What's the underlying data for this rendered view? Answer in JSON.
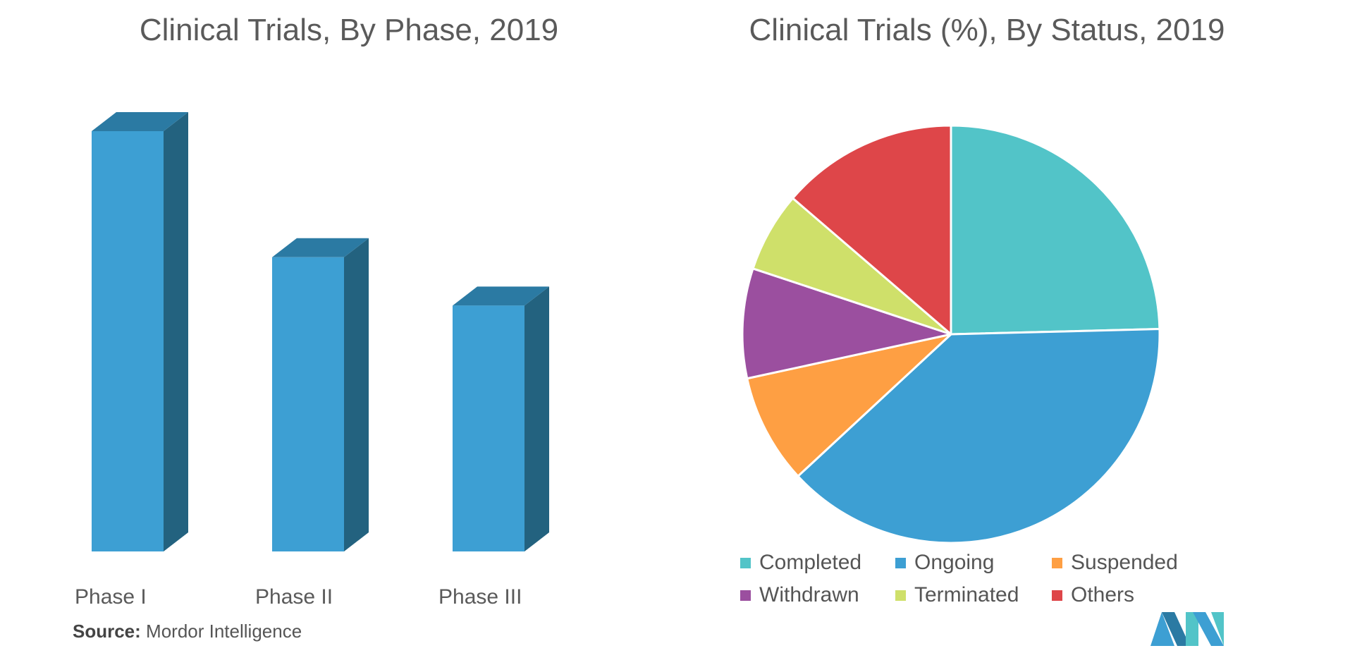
{
  "source": {
    "label": "Source:",
    "text": "Mordor Intelligence"
  },
  "chart_data": [
    {
      "type": "bar",
      "title": "Clinical Trials, By Phase, 2019",
      "categories": [
        "Phase I",
        "Phase II",
        "Phase III"
      ],
      "values": [
        100,
        70,
        58.5
      ],
      "ylim": [
        0,
        100
      ],
      "grid": false,
      "colors": {
        "front": "#3d9fd3",
        "side": "#23627f",
        "top": "#2b7aa3"
      }
    },
    {
      "type": "pie",
      "title": "Clinical Trials (%), By Status, 2019",
      "labels": [
        "Completed",
        "Ongoing",
        "Suspended",
        "Withdrawn",
        "Terminated",
        "Others"
      ],
      "values": [
        24.6,
        38.5,
        8.5,
        8.5,
        6.2,
        13.7
      ],
      "colors": [
        "#52c4c8",
        "#3d9fd3",
        "#fe9f43",
        "#9b4f9f",
        "#cfe06a",
        "#de4649"
      ],
      "legend": "bottom"
    }
  ]
}
